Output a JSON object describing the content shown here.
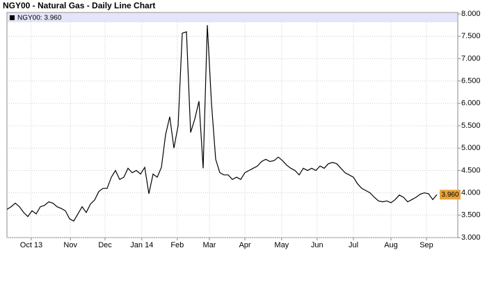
{
  "chart_data": {
    "type": "line",
    "title": "NGY00 - Natural Gas - Daily Line Chart",
    "series": [
      {
        "name": "NGY00: 3.960",
        "color": "#000000",
        "last_label": "3.960",
        "values": [
          3.63,
          3.69,
          3.77,
          3.69,
          3.56,
          3.47,
          3.6,
          3.53,
          3.69,
          3.72,
          3.8,
          3.77,
          3.69,
          3.65,
          3.6,
          3.42,
          3.37,
          3.53,
          3.69,
          3.56,
          3.75,
          3.84,
          4.03,
          4.1,
          4.1,
          4.35,
          4.5,
          4.3,
          4.35,
          4.55,
          4.45,
          4.5,
          4.42,
          4.57,
          3.98,
          4.42,
          4.35,
          4.57,
          5.3,
          5.7,
          5.0,
          5.5,
          7.57,
          7.6,
          5.35,
          5.65,
          6.05,
          4.55,
          7.75,
          6.0,
          4.75,
          4.45,
          4.4,
          4.4,
          4.3,
          4.35,
          4.3,
          4.45,
          4.5,
          4.55,
          4.6,
          4.7,
          4.75,
          4.7,
          4.72,
          4.8,
          4.72,
          4.62,
          4.55,
          4.5,
          4.4,
          4.55,
          4.5,
          4.55,
          4.5,
          4.6,
          4.55,
          4.65,
          4.68,
          4.65,
          4.55,
          4.45,
          4.4,
          4.35,
          4.2,
          4.1,
          4.05,
          4.0,
          3.9,
          3.82,
          3.8,
          3.82,
          3.78,
          3.85,
          3.95,
          3.9,
          3.8,
          3.85,
          3.9,
          3.97,
          4.0,
          3.98,
          3.85,
          3.96
        ]
      }
    ],
    "xlim": [
      0,
      108
    ],
    "xticks": [
      {
        "value": 5.83,
        "label": "Oct 13"
      },
      {
        "value": 15.2,
        "label": "Nov"
      },
      {
        "value": 23.5,
        "label": "Dec"
      },
      {
        "value": 32.3,
        "label": "Jan 14"
      },
      {
        "value": 40.8,
        "label": "Feb"
      },
      {
        "value": 48.5,
        "label": "Mar"
      },
      {
        "value": 57,
        "label": "Apr"
      },
      {
        "value": 65.8,
        "label": "May"
      },
      {
        "value": 74.3,
        "label": "Jun"
      },
      {
        "value": 83,
        "label": "Jul"
      },
      {
        "value": 92,
        "label": "Aug"
      },
      {
        "value": 100.5,
        "label": "Sep"
      }
    ],
    "ylim": [
      3,
      8
    ],
    "yticks": [
      {
        "value": 3,
        "label": "3.000"
      },
      {
        "value": 3.5,
        "label": "3.500"
      },
      {
        "value": 4,
        "label": "4.000"
      },
      {
        "value": 4.5,
        "label": "4.500"
      },
      {
        "value": 5,
        "label": "5.000"
      },
      {
        "value": 5.5,
        "label": "5.500"
      },
      {
        "value": 6,
        "label": "6.000"
      },
      {
        "value": 6.5,
        "label": "6.500"
      },
      {
        "value": 7,
        "label": "7.000"
      },
      {
        "value": 7.5,
        "label": "7.500"
      },
      {
        "value": 8,
        "label": "8.000"
      }
    ],
    "grid": true
  }
}
